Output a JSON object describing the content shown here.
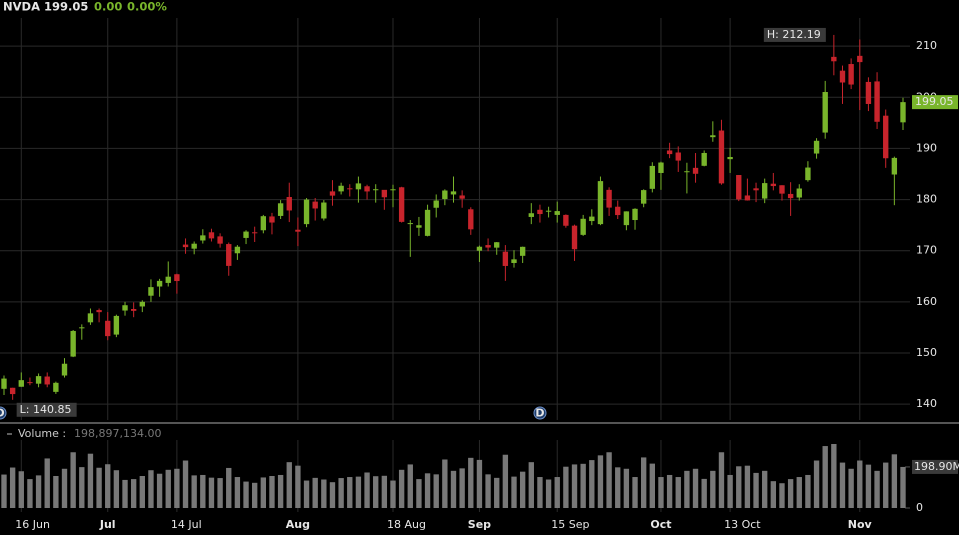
{
  "header": {
    "symbol": "NVDA",
    "price": "199.05",
    "change": "0.00",
    "change_pct": "0.00%"
  },
  "chart_data": {
    "type": "candlestick",
    "categories": [
      null,
      null,
      "16 Jun",
      null,
      null,
      null,
      null,
      null,
      null,
      null,
      null,
      null,
      "Jul",
      null,
      null,
      null,
      null,
      null,
      null,
      null,
      "14 Jul",
      null,
      null,
      null,
      null,
      null,
      null,
      null,
      null,
      null,
      null,
      null,
      null,
      null,
      "Aug",
      null,
      null,
      null,
      null,
      null,
      null,
      null,
      null,
      null,
      null,
      "18 Aug",
      null,
      null,
      null,
      null,
      null,
      null,
      null,
      null,
      null,
      "Sep",
      null,
      null,
      null,
      null,
      null,
      null,
      null,
      null,
      "15 Sep",
      null,
      null,
      null,
      null,
      null,
      null,
      null,
      null,
      null,
      null,
      null,
      "Oct",
      null,
      null,
      null,
      null,
      null,
      null,
      null,
      "13 Oct",
      null,
      null,
      null,
      null,
      null,
      null,
      null,
      null,
      null,
      null,
      null,
      null,
      null,
      null,
      "Nov",
      null,
      null,
      null,
      null,
      null
    ],
    "open": [
      143.0,
      143.2,
      143.4,
      144.3,
      144.0,
      145.4,
      142.4,
      145.6,
      149.3,
      155.0,
      156.0,
      158.4,
      156.3,
      153.6,
      158.3,
      158.6,
      159.1,
      161.2,
      163.0,
      163.7,
      165.4,
      171.2,
      170.4,
      172.0,
      173.6,
      172.8,
      171.3,
      169.5,
      172.5,
      173.6,
      174.0,
      176.7,
      176.8,
      180.5,
      174.1,
      175.2,
      179.6,
      176.3,
      181.6,
      181.6,
      182.2,
      182.0,
      182.6,
      181.9,
      181.9,
      181.9,
      182.4,
      175.4,
      174.5,
      172.9,
      178.4,
      180.1,
      181.0,
      180.8,
      178.1,
      170.0,
      171.1,
      170.6,
      169.8,
      167.6,
      169.0,
      176.6,
      178.0,
      177.8,
      177.0,
      177.0,
      174.9,
      173.1,
      175.8,
      175.2,
      181.9,
      178.6,
      175.0,
      176.0,
      179.2,
      182.1,
      185.2,
      189.6,
      189.2,
      185.5,
      186.2,
      186.6,
      192.2,
      193.5,
      187.9,
      184.8,
      180.8,
      182.2,
      180.2,
      183.1,
      182.8,
      181.1,
      180.4,
      183.8,
      189.0,
      193.1,
      207.9,
      205.2,
      206.5,
      208.1,
      203.0,
      203.1,
      196.4,
      184.9,
      195.1
    ],
    "high": [
      145.6,
      143.2,
      146.2,
      145.2,
      146.0,
      146.2,
      144.4,
      149.0,
      154.5,
      155.6,
      158.7,
      158.7,
      158.0,
      157.5,
      160.0,
      159.9,
      160.3,
      164.4,
      164.5,
      167.9,
      165.5,
      172.4,
      171.8,
      174.2,
      174.3,
      173.4,
      171.6,
      171.1,
      174.0,
      174.7,
      177.0,
      177.4,
      179.9,
      183.3,
      176.5,
      180.3,
      180.3,
      179.9,
      183.8,
      183.3,
      183.0,
      184.5,
      182.9,
      183.0,
      181.8,
      182.9,
      182.5,
      176.0,
      176.6,
      179.0,
      181.0,
      182.0,
      184.5,
      181.8,
      178.5,
      171.0,
      172.4,
      171.7,
      171.1,
      170.1,
      170.8,
      179.3,
      179.0,
      178.6,
      179.6,
      177.1,
      175.1,
      177.0,
      178.1,
      184.5,
      182.4,
      179.8,
      177.7,
      178.3,
      182.0,
      187.3,
      187.4,
      191.1,
      190.4,
      187.2,
      189.1,
      189.6,
      195.3,
      195.6,
      190.1,
      184.8,
      184.1,
      183.3,
      184.1,
      185.2,
      182.8,
      183.4,
      183.0,
      187.5,
      192.0,
      203.2,
      212.19,
      206.2,
      207.6,
      211.3,
      203.9,
      204.9,
      197.6,
      188.4,
      199.9
    ],
    "low": [
      141.8,
      140.85,
      143.4,
      143.7,
      143.3,
      143.3,
      142.0,
      145.2,
      149.2,
      152.6,
      155.5,
      156.0,
      152.5,
      153.1,
      157.3,
      157.0,
      158.0,
      160.0,
      161.0,
      163.0,
      161.6,
      169.4,
      169.3,
      171.4,
      171.8,
      170.6,
      165.1,
      168.2,
      171.3,
      171.7,
      173.4,
      173.2,
      176.2,
      175.6,
      170.9,
      174.6,
      175.9,
      175.9,
      178.8,
      181.0,
      180.6,
      179.4,
      180.0,
      179.4,
      178.0,
      178.5,
      175.5,
      168.8,
      172.9,
      172.8,
      176.5,
      178.9,
      179.4,
      178.4,
      173.1,
      167.8,
      169.9,
      169.2,
      164.1,
      166.7,
      167.6,
      175.2,
      175.5,
      176.5,
      175.5,
      174.5,
      168.0,
      172.9,
      175.0,
      175.0,
      176.8,
      176.2,
      174.0,
      174.1,
      178.5,
      181.4,
      181.9,
      188.1,
      185.4,
      181.2,
      183.3,
      186.5,
      191.3,
      182.9,
      185.2,
      179.7,
      179.8,
      179.5,
      179.3,
      181.8,
      179.8,
      176.8,
      179.8,
      183.5,
      188.0,
      191.9,
      204.3,
      198.7,
      201.6,
      197.5,
      197.3,
      193.8,
      186.2,
      178.9,
      193.6
    ],
    "close": [
      145.0,
      141.97,
      144.69,
      144.12,
      145.48,
      143.85,
      144.17,
      147.9,
      154.31,
      155.02,
      157.75,
      157.99,
      153.3,
      157.25,
      159.34,
      158.24,
      160.0,
      162.88,
      164.1,
      164.92,
      164.07,
      170.7,
      171.37,
      173.0,
      172.41,
      171.38,
      167.03,
      170.78,
      173.74,
      173.5,
      176.75,
      175.51,
      179.27,
      177.87,
      173.72,
      180.0,
      178.26,
      179.42,
      180.77,
      182.7,
      182.06,
      183.16,
      181.59,
      182.02,
      180.45,
      182.01,
      175.64,
      175.4,
      174.98,
      177.99,
      179.81,
      181.77,
      181.6,
      180.17,
      174.18,
      170.78,
      170.62,
      171.66,
      167.02,
      168.31,
      170.76,
      177.33,
      177.17,
      177.82,
      177.75,
      174.88,
      170.29,
      176.24,
      176.67,
      183.61,
      178.43,
      176.97,
      177.69,
      178.19,
      181.85,
      186.58,
      187.24,
      188.89,
      187.62,
      185.54,
      185.04,
      189.11,
      192.57,
      183.16,
      188.32,
      180.03,
      179.83,
      181.81,
      183.22,
      182.64,
      181.16,
      180.28,
      182.16,
      186.26,
      191.49,
      201.03,
      207.04,
      202.89,
      202.49,
      206.88,
      198.69,
      195.21,
      188.08,
      188.15,
      199.05
    ],
    "up_color": "#79b52b",
    "down_color": "#c8242c",
    "high_label": "H: 212.19",
    "low_label": "L: 140.85",
    "event_label": "D",
    "ylim": [
      136.9,
      215.5
    ],
    "yticks": [
      140,
      150,
      160,
      170,
      180,
      190,
      200,
      210
    ],
    "grid": true,
    "volume": {
      "title": "Volume :",
      "value_label": "198,897,134.00",
      "color": "#787878",
      "values": [
        162,
        196,
        178,
        140,
        158,
        240,
        155,
        190,
        270,
        198,
        263,
        195,
        212,
        183,
        136,
        140,
        155,
        183,
        166,
        185,
        190,
        230,
        158,
        160,
        147,
        145,
        194,
        150,
        128,
        122,
        148,
        155,
        160,
        222,
        205,
        133,
        146,
        138,
        125,
        145,
        150,
        152,
        172,
        154,
        156,
        133,
        185,
        211,
        140,
        168,
        163,
        235,
        180,
        192,
        243,
        233,
        163,
        146,
        258,
        152,
        176,
        222,
        150,
        138,
        150,
        200,
        211,
        214,
        232,
        255,
        270,
        197,
        190,
        150,
        245,
        215,
        150,
        160,
        150,
        180,
        190,
        141,
        180,
        270,
        160,
        202,
        205,
        170,
        180,
        130,
        120,
        140,
        150,
        160,
        230,
        300,
        310,
        220,
        190,
        230,
        210,
        180,
        220,
        260,
        198.897134
      ],
      "ylim": [
        0,
        310
      ],
      "yticks": [
        0,
        {
          "value": 198.897134,
          "label": "198.90M"
        }
      ]
    }
  }
}
